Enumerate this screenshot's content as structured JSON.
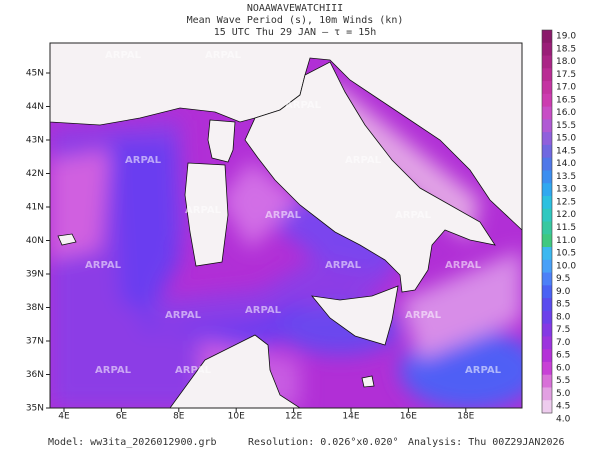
{
  "header": {
    "lines": [
      "NOAAWAVEWATCHIII",
      "Mean Wave Period (s), 10m Winds (kn)",
      "15 UTC Thu 29 JAN  –  τ = 15h"
    ]
  },
  "map": {
    "lat_labels": [
      "45N",
      "44N",
      "43N",
      "42N",
      "41N",
      "40N",
      "39N",
      "38N",
      "37N",
      "36N",
      "35N"
    ],
    "lon_labels": [
      "4E",
      "6E",
      "8E",
      "10E",
      "12E",
      "14E",
      "16E",
      "18E"
    ],
    "watermark": "ARPAL"
  },
  "colorbar": {
    "labels": [
      "19.0",
      "18.5",
      "18.0",
      "17.5",
      "17.0",
      "16.5",
      "16.0",
      "15.5",
      "15.0",
      "14.5",
      "14.0",
      "13.5",
      "13.0",
      "12.5",
      "12.0",
      "11.5",
      "11.0",
      "10.5",
      "10.0",
      "9.5",
      "9.0",
      "8.5",
      "8.0",
      "7.5",
      "7.0",
      "6.5",
      "6.0",
      "5.5",
      "5.0",
      "4.5",
      "4.0"
    ]
  },
  "footer": {
    "model": "Model: ww3ita_2026012900.grb",
    "resolution": "Resolution: 0.026°x0.020°",
    "analysis": "Analysis: Thu 00Z29JAN2026"
  }
}
